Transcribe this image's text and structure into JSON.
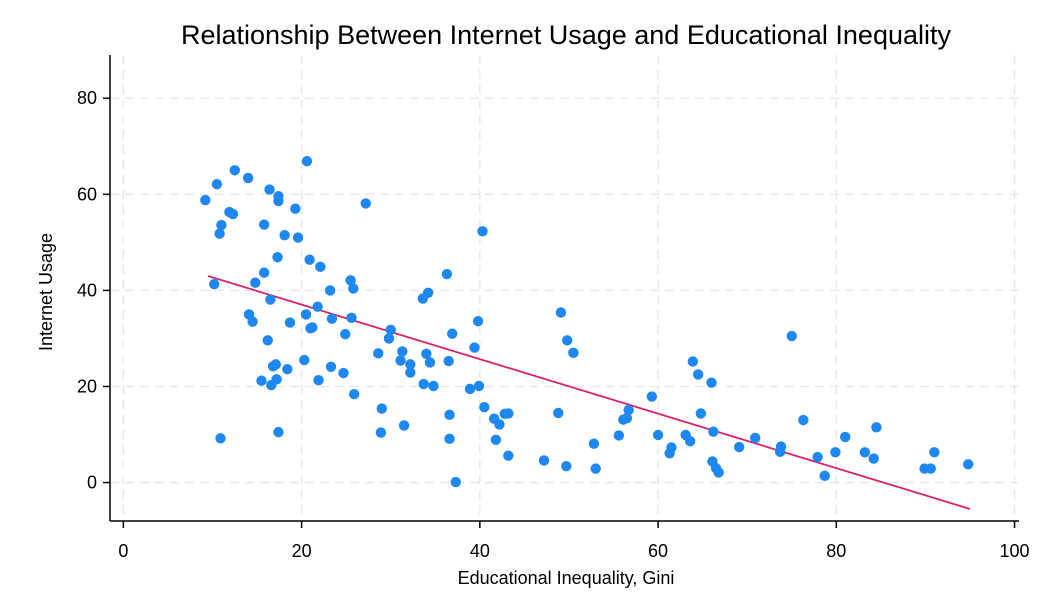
{
  "chart_data": {
    "type": "scatter",
    "title": "Relationship Between Internet Usage and Educational Inequality",
    "xlabel": "Educational Inequality, Gini",
    "ylabel": "Internet Usage",
    "xlim": [
      -1.5,
      100.5
    ],
    "ylim": [
      -8,
      89
    ],
    "xticks": [
      0,
      20,
      40,
      60,
      80,
      100
    ],
    "yticks": [
      0,
      20,
      40,
      60,
      80
    ],
    "grid": true,
    "point_color": "#1e88f0",
    "fit_color": "#d6246a",
    "fit_line": {
      "x": [
        9.5,
        95.0
      ],
      "y": [
        43.0,
        -5.5
      ]
    },
    "points": [
      [
        9.2,
        58.8
      ],
      [
        10.2,
        41.3
      ],
      [
        10.5,
        62.1
      ],
      [
        10.8,
        51.8
      ],
      [
        11.0,
        53.6
      ],
      [
        10.9,
        9.2
      ],
      [
        11.9,
        56.3
      ],
      [
        12.3,
        55.9
      ],
      [
        12.5,
        65.0
      ],
      [
        14.0,
        63.4
      ],
      [
        14.1,
        35.0
      ],
      [
        14.5,
        33.5
      ],
      [
        14.8,
        41.6
      ],
      [
        15.5,
        21.2
      ],
      [
        15.8,
        53.7
      ],
      [
        15.8,
        43.7
      ],
      [
        16.2,
        29.6
      ],
      [
        16.4,
        61.0
      ],
      [
        16.5,
        38.1
      ],
      [
        16.6,
        20.3
      ],
      [
        16.8,
        24.2
      ],
      [
        17.1,
        24.6
      ],
      [
        17.2,
        21.5
      ],
      [
        17.3,
        46.9
      ],
      [
        17.4,
        59.6
      ],
      [
        17.4,
        58.6
      ],
      [
        17.4,
        10.5
      ],
      [
        18.1,
        51.5
      ],
      [
        18.4,
        23.6
      ],
      [
        18.7,
        33.3
      ],
      [
        19.3,
        57.0
      ],
      [
        19.6,
        51.0
      ],
      [
        20.3,
        25.5
      ],
      [
        20.5,
        35.0
      ],
      [
        20.6,
        66.9
      ],
      [
        20.9,
        46.4
      ],
      [
        21.0,
        32.1
      ],
      [
        21.2,
        32.3
      ],
      [
        21.8,
        36.6
      ],
      [
        21.9,
        21.3
      ],
      [
        22.1,
        44.9
      ],
      [
        23.2,
        40.0
      ],
      [
        23.3,
        24.1
      ],
      [
        23.4,
        34.1
      ],
      [
        24.7,
        22.8
      ],
      [
        24.9,
        30.9
      ],
      [
        25.5,
        42.1
      ],
      [
        25.6,
        34.3
      ],
      [
        25.8,
        40.4
      ],
      [
        25.9,
        18.4
      ],
      [
        27.2,
        58.1
      ],
      [
        28.6,
        26.9
      ],
      [
        28.9,
        10.4
      ],
      [
        29.0,
        15.4
      ],
      [
        29.8,
        30.0
      ],
      [
        30.0,
        31.8
      ],
      [
        31.1,
        25.4
      ],
      [
        31.3,
        27.3
      ],
      [
        31.5,
        11.9
      ],
      [
        32.2,
        24.6
      ],
      [
        32.2,
        22.9
      ],
      [
        33.6,
        38.3
      ],
      [
        33.7,
        20.5
      ],
      [
        34.0,
        26.8
      ],
      [
        34.2,
        39.5
      ],
      [
        34.4,
        25.0
      ],
      [
        34.8,
        20.1
      ],
      [
        36.3,
        43.4
      ],
      [
        36.5,
        25.3
      ],
      [
        36.6,
        14.1
      ],
      [
        36.6,
        9.1
      ],
      [
        36.9,
        31.0
      ],
      [
        37.3,
        0.1
      ],
      [
        38.9,
        19.5
      ],
      [
        39.4,
        28.1
      ],
      [
        39.8,
        33.6
      ],
      [
        39.9,
        20.1
      ],
      [
        40.3,
        52.3
      ],
      [
        40.5,
        15.7
      ],
      [
        41.6,
        13.3
      ],
      [
        41.8,
        8.9
      ],
      [
        42.2,
        12.1
      ],
      [
        42.8,
        14.3
      ],
      [
        43.2,
        14.4
      ],
      [
        43.2,
        5.6
      ],
      [
        47.2,
        4.6
      ],
      [
        48.8,
        14.5
      ],
      [
        49.1,
        35.4
      ],
      [
        49.7,
        3.4
      ],
      [
        49.8,
        29.6
      ],
      [
        50.5,
        27.0
      ],
      [
        52.8,
        8.1
      ],
      [
        53.0,
        2.9
      ],
      [
        55.6,
        9.8
      ],
      [
        56.1,
        13.1
      ],
      [
        56.5,
        13.4
      ],
      [
        56.7,
        15.1
      ],
      [
        59.3,
        17.9
      ],
      [
        60.0,
        9.9
      ],
      [
        61.3,
        6.1
      ],
      [
        61.5,
        7.3
      ],
      [
        63.1,
        9.9
      ],
      [
        63.6,
        8.6
      ],
      [
        63.9,
        25.2
      ],
      [
        64.5,
        22.5
      ],
      [
        64.8,
        14.4
      ],
      [
        66.0,
        20.8
      ],
      [
        66.1,
        4.4
      ],
      [
        66.2,
        10.6
      ],
      [
        66.5,
        3.0
      ],
      [
        66.8,
        2.1
      ],
      [
        69.1,
        7.4
      ],
      [
        70.9,
        9.3
      ],
      [
        73.7,
        6.4
      ],
      [
        73.8,
        7.5
      ],
      [
        75.0,
        30.5
      ],
      [
        76.3,
        13.0
      ],
      [
        77.9,
        5.3
      ],
      [
        78.7,
        1.4
      ],
      [
        79.9,
        6.3
      ],
      [
        81.0,
        9.5
      ],
      [
        83.2,
        6.3
      ],
      [
        84.2,
        5.0
      ],
      [
        84.5,
        11.5
      ],
      [
        89.9,
        2.9
      ],
      [
        90.6,
        2.9
      ],
      [
        91.0,
        6.3
      ],
      [
        94.8,
        3.8
      ]
    ]
  }
}
